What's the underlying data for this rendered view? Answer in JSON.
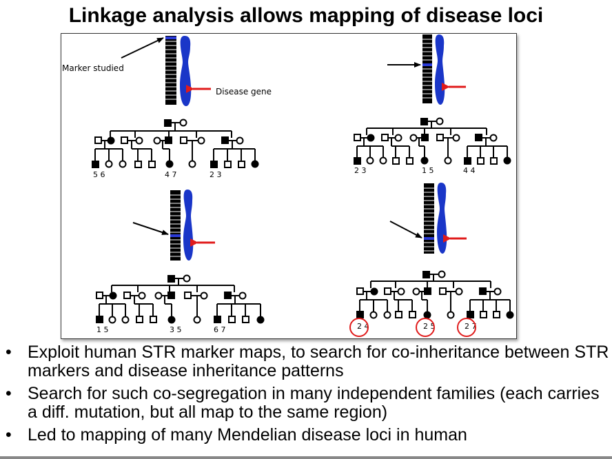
{
  "slide": {
    "title": "Linkage analysis allows mapping of disease loci"
  },
  "figure": {
    "marker_label": "Marker studied",
    "disease_label": "Disease gene",
    "panels": [
      {
        "genotypes": [
          "5 6",
          "4 7",
          "2 3"
        ],
        "highlight": false
      },
      {
        "genotypes": [
          "2 3",
          "1 5",
          "4 4"
        ],
        "highlight": false
      },
      {
        "genotypes": [
          "1 5",
          "3 5",
          "6 7"
        ],
        "highlight": false
      },
      {
        "genotypes": [
          "2 4",
          "2 5",
          "2 7"
        ],
        "highlight": true
      }
    ],
    "colors": {
      "marker_band": "#2b3bd6",
      "chromosome": "#1a36c8",
      "disease_arrow": "#e01b1b",
      "circle": "#e01b1b"
    }
  },
  "bullets": [
    "Exploit human STR marker maps, to search for co-inheritance between STR markers and disease inheritance patterns",
    "Search for such co-segregation in many independent families (each carries a diff. mutation, but all map to the same region)",
    "Led to mapping of many Mendelian disease loci in human"
  ]
}
